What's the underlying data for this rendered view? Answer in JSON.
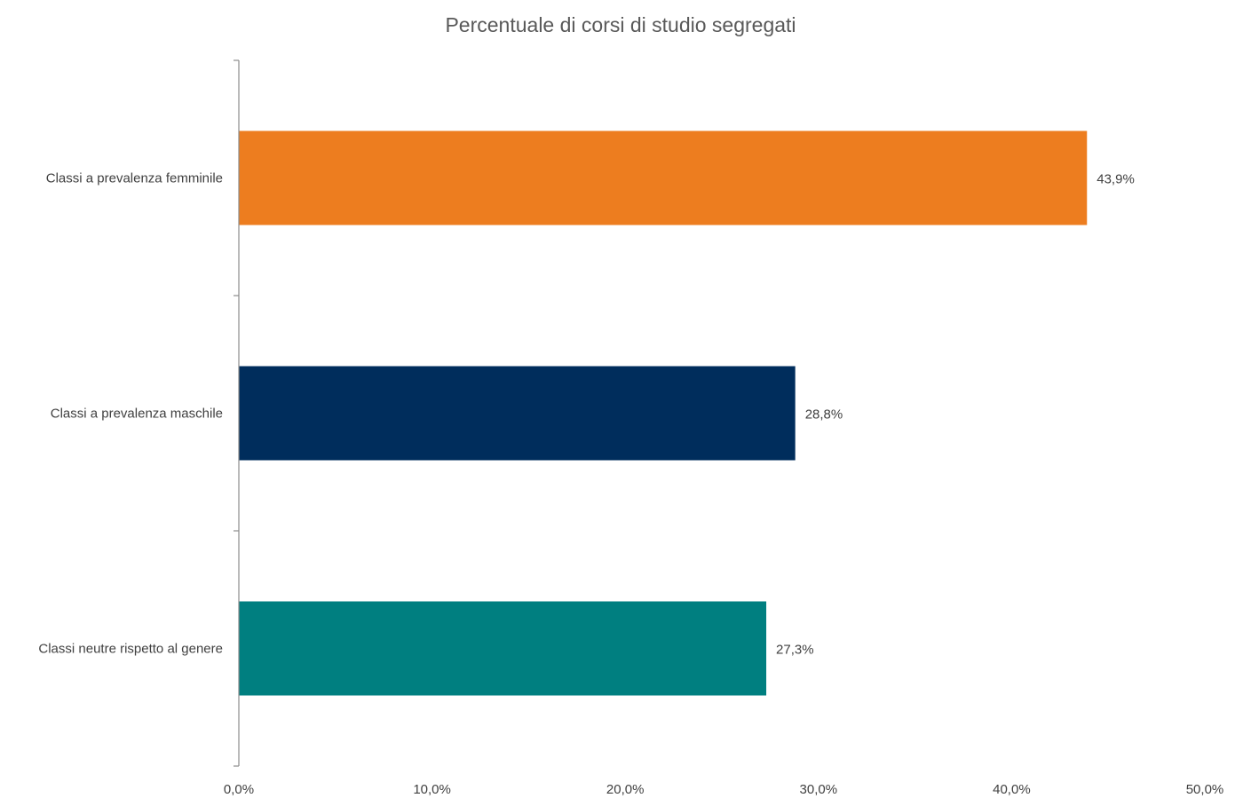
{
  "chart_data": {
    "type": "bar",
    "orientation": "horizontal",
    "title": "Percentuale di corsi di studio segregati",
    "xlabel": "",
    "ylabel": "",
    "categories": [
      "Classi a prevalenza femminile",
      "Classi a prevalenza maschile",
      "Classi neutre rispetto al genere"
    ],
    "values": [
      43.9,
      28.8,
      27.3
    ],
    "data_labels": [
      "43,9%",
      "28,8%",
      "27,3%"
    ],
    "colors": [
      "#ED7D1F",
      "#002D5C",
      "#007F80"
    ],
    "xlim": [
      0,
      50
    ],
    "x_ticks": [
      0,
      10,
      20,
      30,
      40,
      50
    ],
    "x_tick_labels": [
      "0,0%",
      "10,0%",
      "20,0%",
      "30,0%",
      "40,0%",
      "50,0%"
    ],
    "grid": false,
    "legend": "none"
  }
}
